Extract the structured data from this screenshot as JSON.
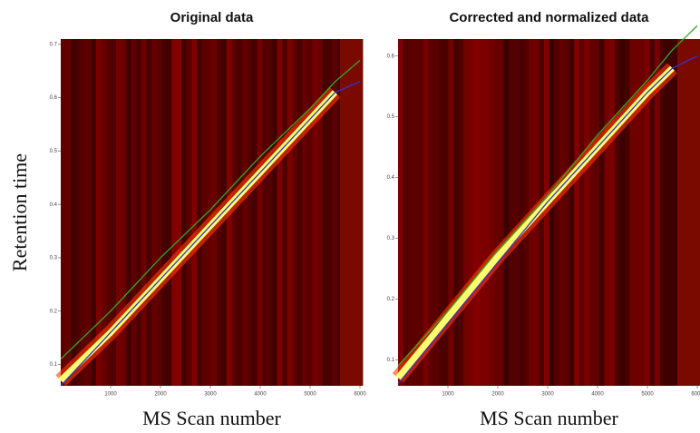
{
  "chart_data": [
    {
      "type": "line",
      "title": "Original data",
      "xlabel": "MS Scan number",
      "ylabel": "Retention time",
      "x": [
        0,
        1000,
        2000,
        3000,
        4000,
        5000,
        5500,
        6000
      ],
      "xlim": [
        0,
        6000
      ],
      "ylim": [
        0.06,
        0.71
      ],
      "xticks": [
        1000,
        2000,
        3000,
        4000,
        5000,
        6000
      ],
      "yticks": [
        0.1,
        0.2,
        0.3,
        0.4,
        0.5,
        0.6,
        0.7
      ],
      "series": [
        {
          "color": "#ffff70",
          "values": [
            0.07,
            0.16,
            0.26,
            0.36,
            0.46,
            0.56,
            0.61,
            null
          ]
        },
        {
          "color": "#33aa22",
          "values": [
            0.11,
            0.2,
            0.3,
            0.39,
            0.49,
            0.58,
            0.63,
            0.67
          ]
        },
        {
          "color": "#3333cc",
          "values": [
            0.06,
            0.16,
            0.26,
            0.36,
            0.46,
            0.56,
            0.61,
            0.63
          ]
        }
      ]
    },
    {
      "type": "line",
      "title": "Corrected and normalized data",
      "xlabel": "MS Scan number",
      "x": [
        0,
        1000,
        2000,
        3000,
        4000,
        5000,
        5500,
        6000
      ],
      "xlim": [
        0,
        6000
      ],
      "ylim": [
        0.057,
        0.628
      ],
      "xticks": [
        1000,
        2000,
        3000,
        4000,
        5000,
        6000
      ],
      "yticks": [
        0.1,
        0.2,
        0.3,
        0.4,
        0.5,
        0.6
      ],
      "series": [
        {
          "color": "#ffff70",
          "values": [
            0.07,
            0.17,
            0.27,
            0.36,
            0.45,
            0.54,
            0.58,
            null
          ]
        },
        {
          "color": "#33aa22",
          "values": [
            0.09,
            0.18,
            0.28,
            0.37,
            0.47,
            0.56,
            0.61,
            0.65
          ]
        },
        {
          "color": "#3333cc",
          "values": [
            0.06,
            0.16,
            0.26,
            0.36,
            0.45,
            0.54,
            0.58,
            0.6
          ]
        }
      ]
    }
  ]
}
